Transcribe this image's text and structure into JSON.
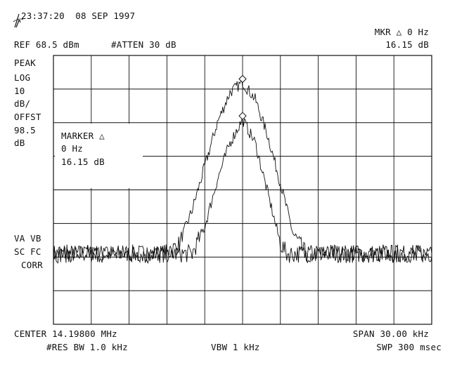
{
  "timestamp": "23:37:20  08 SEP 1997",
  "logo": "hp",
  "marker_readout": {
    "label": "MKR △ 0 Hz",
    "value": "16.15 dB"
  },
  "reference": {
    "ref_level": "REF 68.5 dBm",
    "attenuation": "#ATTEN 30 dB"
  },
  "scale_annotation": [
    "PEAK",
    "LOG",
    "10",
    "dB/",
    "OFFST",
    "98.5",
    "dB"
  ],
  "marker_box": {
    "title": "MARKER △",
    "freq": "0 Hz",
    "value": "16.15 dB"
  },
  "detector_annotation": [
    "VA VB",
    "SC FC",
    "CORR"
  ],
  "footer": {
    "center": "CENTER 14.19800 MHz",
    "span": "SPAN 30.00 kHz",
    "rbw": "#RES BW 1.0 kHz",
    "vbw": "VBW 1 kHz",
    "sweep": "SWP 300 msec"
  },
  "graticule": {
    "divisions_x": 10,
    "divisions_y": 8
  },
  "chart_data": {
    "type": "line",
    "x_units": "kHz offset from center",
    "xlim": [
      -15,
      15
    ],
    "ylim": [
      0,
      8
    ],
    "y_units": "divisions (10 dB/div)",
    "series": [
      {
        "x": [
          -15,
          -6,
          -5,
          -4,
          -3,
          -2,
          -1,
          0,
          1,
          2,
          3,
          4,
          5,
          15
        ],
        "values": [
          2.1,
          2.1,
          2.4,
          3.4,
          4.7,
          6.0,
          6.9,
          7.2,
          6.7,
          5.6,
          4.2,
          2.7,
          2.1,
          2.1
        ]
      },
      {
        "x": [
          -15,
          -4,
          -3,
          -2,
          -1,
          0,
          1,
          2,
          3,
          3.5,
          15
        ],
        "values": [
          2.1,
          2.1,
          2.9,
          4.3,
          5.4,
          6.1,
          5.4,
          3.9,
          2.4,
          2.1,
          2.1
        ]
      }
    ],
    "markers": [
      {
        "series": 0,
        "x": 0,
        "y": 7.3
      },
      {
        "series": 1,
        "x": 0,
        "y": 6.2
      }
    ]
  }
}
